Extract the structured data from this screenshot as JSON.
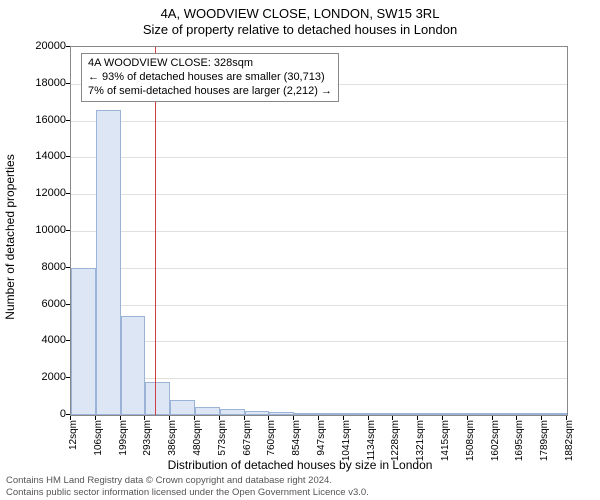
{
  "title": "4A, WOODVIEW CLOSE, LONDON, SW15 3RL",
  "subtitle": "Size of property relative to detached houses in London",
  "chart": {
    "type": "histogram",
    "y_label": "Number of detached properties",
    "x_label": "Distribution of detached houses by size in London",
    "ylim": [
      0,
      20000
    ],
    "y_ticks": [
      0,
      2000,
      4000,
      6000,
      8000,
      10000,
      12000,
      14000,
      16000,
      18000,
      20000
    ],
    "x_ticks": [
      "12sqm",
      "106sqm",
      "199sqm",
      "293sqm",
      "386sqm",
      "480sqm",
      "573sqm",
      "667sqm",
      "760sqm",
      "854sqm",
      "947sqm",
      "1041sqm",
      "1134sqm",
      "1228sqm",
      "1321sqm",
      "1415sqm",
      "1508sqm",
      "1602sqm",
      "1695sqm",
      "1789sqm",
      "1882sqm"
    ],
    "bars": [
      {
        "value": 8000
      },
      {
        "value": 16600
      },
      {
        "value": 5400
      },
      {
        "value": 1800
      },
      {
        "value": 800
      },
      {
        "value": 450
      },
      {
        "value": 350
      },
      {
        "value": 200
      },
      {
        "value": 150
      },
      {
        "value": 120
      },
      {
        "value": 80
      },
      {
        "value": 50
      },
      {
        "value": 40
      },
      {
        "value": 30
      },
      {
        "value": 20
      },
      {
        "value": 15
      },
      {
        "value": 12
      },
      {
        "value": 10
      },
      {
        "value": 8
      },
      {
        "value": 6
      }
    ],
    "bar_fill": "#dde6f5",
    "bar_border": "#9bb3d6",
    "grid_color": "#e0e0e0",
    "axis_color": "#888888",
    "ref_line_color": "#d04040",
    "ref_value_sqm": 328,
    "x_range_sqm": [
      12,
      1882
    ]
  },
  "info_box": {
    "line1": "4A WOODVIEW CLOSE: 328sqm",
    "line2": "← 93% of detached houses are smaller (30,713)",
    "line3": "7% of semi-detached houses are larger (2,212) →"
  },
  "footer": {
    "line1": "Contains HM Land Registry data © Crown copyright and database right 2024.",
    "line2": "Contains public sector information licensed under the Open Government Licence v3.0."
  }
}
